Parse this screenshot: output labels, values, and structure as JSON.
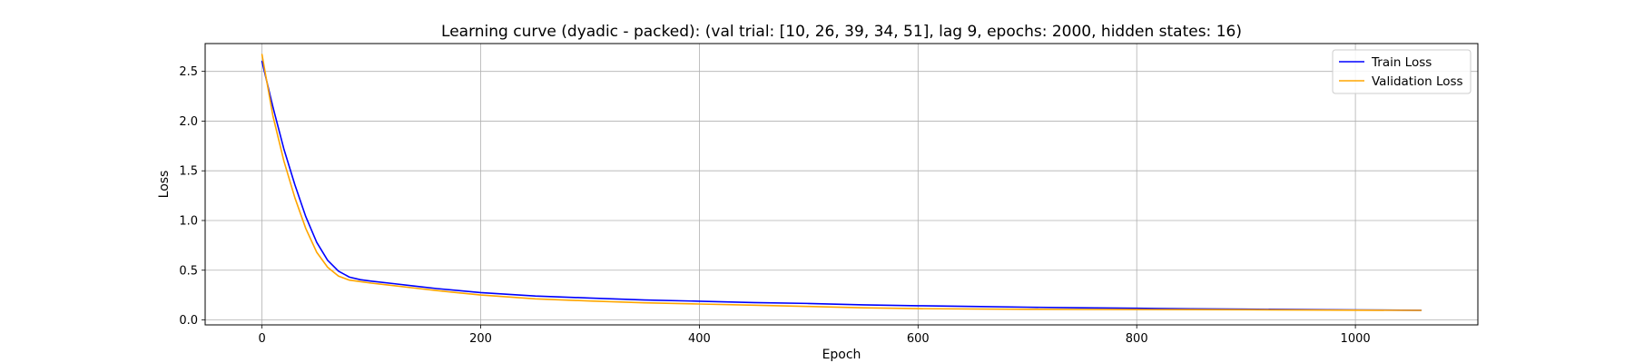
{
  "chart_data": {
    "type": "line",
    "title": "Learning curve (dyadic - packed): (val trial: [10, 26, 39, 34, 51], lag 9, epochs: 2000, hidden states: 16)",
    "xlabel": "Epoch",
    "ylabel": "Loss",
    "xlim": [
      -52,
      1112
    ],
    "ylim": [
      -0.05,
      2.78
    ],
    "xticks": [
      0,
      200,
      400,
      600,
      800,
      1000
    ],
    "yticks": [
      0.0,
      0.5,
      1.0,
      1.5,
      2.0,
      2.5
    ],
    "xtick_labels": [
      "0",
      "200",
      "400",
      "600",
      "800",
      "1000"
    ],
    "ytick_labels": [
      "0.0",
      "0.5",
      "1.0",
      "1.5",
      "2.0",
      "2.5"
    ],
    "grid": true,
    "legend_position": "top-right",
    "series": [
      {
        "name": "Train Loss",
        "color": "#0000ff",
        "x": [
          0,
          10,
          20,
          30,
          40,
          50,
          60,
          70,
          80,
          90,
          100,
          120,
          140,
          160,
          180,
          200,
          250,
          300,
          350,
          400,
          450,
          500,
          550,
          600,
          650,
          700,
          750,
          800,
          850,
          900,
          950,
          1000,
          1060
        ],
        "y": [
          2.6,
          2.14,
          1.72,
          1.36,
          1.04,
          0.78,
          0.6,
          0.49,
          0.43,
          0.405,
          0.39,
          0.365,
          0.34,
          0.315,
          0.295,
          0.275,
          0.24,
          0.22,
          0.2,
          0.188,
          0.175,
          0.165,
          0.152,
          0.143,
          0.135,
          0.128,
          0.122,
          0.117,
          0.112,
          0.108,
          0.104,
          0.1,
          0.097
        ]
      },
      {
        "name": "Validation Loss",
        "color": "#ffa500",
        "x": [
          0,
          10,
          20,
          30,
          40,
          50,
          60,
          70,
          80,
          90,
          100,
          120,
          140,
          160,
          180,
          200,
          250,
          300,
          350,
          400,
          450,
          500,
          550,
          600,
          650,
          700,
          750,
          800,
          850,
          900,
          950,
          1000,
          1060
        ],
        "y": [
          2.67,
          2.05,
          1.6,
          1.23,
          0.92,
          0.68,
          0.53,
          0.44,
          0.4,
          0.385,
          0.37,
          0.345,
          0.32,
          0.295,
          0.272,
          0.25,
          0.212,
          0.19,
          0.172,
          0.16,
          0.148,
          0.135,
          0.122,
          0.113,
          0.11,
          0.107,
          0.105,
          0.104,
          0.103,
          0.102,
          0.1,
          0.098,
          0.096
        ]
      }
    ]
  }
}
